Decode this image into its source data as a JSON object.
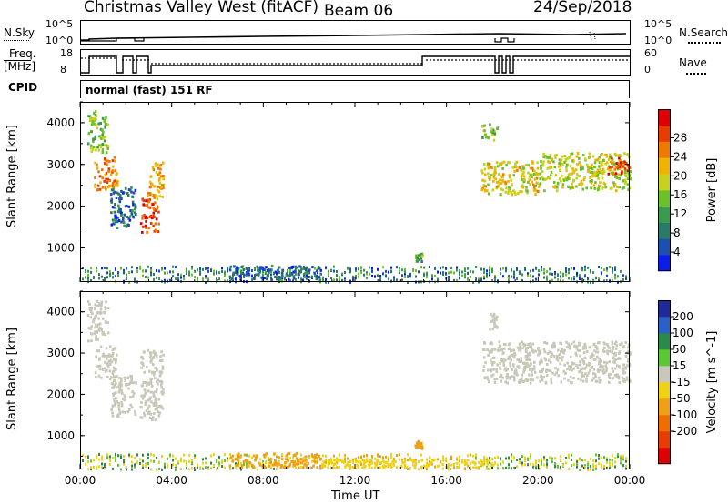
{
  "header": {
    "radar_name": "Christmas Valley West (fitACF)",
    "beam": "Beam 06",
    "date": "24/Sep/2018"
  },
  "top_panels": {
    "nsky_label": "N.Sky",
    "nsearch_label": "N.Search",
    "noise_tick_top": "10^5",
    "noise_tick_bottom": "10^0",
    "freq_label_line1": "Freq.",
    "freq_label_line2": "[MHz]",
    "freq_tick_top": "18",
    "freq_tick_bottom": "8",
    "nave_label": "Nave",
    "nave_tick_top": "60",
    "nave_tick_bottom": "0",
    "cpid_label": "CPID",
    "cpid_text": "normal (fast) 151 RF"
  },
  "chart_data": [
    {
      "type": "heatmap",
      "panel": "power",
      "xlabel": "",
      "ylabel": "Slant Range [km]",
      "y_ticks": [
        "1000",
        "2000",
        "3000",
        "4000"
      ],
      "ylim": [
        180,
        4500
      ],
      "xlim_hours": [
        0,
        24
      ],
      "colorbar_label": "Power [dB]",
      "colorbar_ticks": [
        "4",
        "8",
        "12",
        "16",
        "20",
        "24",
        "28"
      ],
      "colorbar_colors": [
        "#0a1cf0",
        "#1c4fb0",
        "#2a7a6a",
        "#3a9a4e",
        "#6cc02a",
        "#c8d21e",
        "#f0b400",
        "#f07a00",
        "#e83c00",
        "#e00000"
      ],
      "regions": [
        {
          "x": [
            0.3,
            1.2
          ],
          "y": [
            3300,
            4300
          ],
          "value": 14
        },
        {
          "x": [
            0.6,
            1.6
          ],
          "y": [
            2400,
            3200
          ],
          "value": 22
        },
        {
          "x": [
            1.3,
            2.4
          ],
          "y": [
            1500,
            2500
          ],
          "value": 6
        },
        {
          "x": [
            2.6,
            3.4
          ],
          "y": [
            1400,
            2200
          ],
          "value": 26
        },
        {
          "x": [
            2.9,
            3.6
          ],
          "y": [
            2200,
            3100
          ],
          "value": 20
        },
        {
          "x": [
            6.5,
            10.5
          ],
          "y": [
            250,
            600
          ],
          "value": 6
        },
        {
          "x": [
            14.6,
            14.9
          ],
          "y": [
            700,
            900
          ],
          "value": 12
        },
        {
          "x": [
            17.5,
            18.2
          ],
          "y": [
            3600,
            4000
          ],
          "value": 14
        },
        {
          "x": [
            17.5,
            20.0
          ],
          "y": [
            2300,
            3100
          ],
          "value": 18
        },
        {
          "x": [
            20.0,
            24.0
          ],
          "y": [
            2400,
            3300
          ],
          "value": 16
        },
        {
          "x": [
            23.0,
            24.0
          ],
          "y": [
            2800,
            3200
          ],
          "value": 26
        }
      ]
    },
    {
      "type": "heatmap",
      "panel": "velocity",
      "xlabel": "Time UT",
      "ylabel": "Slant Range [km]",
      "x_ticks": [
        "00:00",
        "04:00",
        "08:00",
        "12:00",
        "16:00",
        "20:00",
        "00:00"
      ],
      "y_ticks": [
        "1000",
        "2000",
        "3000",
        "4000"
      ],
      "ylim": [
        180,
        4500
      ],
      "xlim_hours": [
        0,
        24
      ],
      "colorbar_label": "Velocity [m s^-1]",
      "colorbar_ticks": [
        "200",
        "100",
        "50",
        "15",
        "-15",
        "-50",
        "-100",
        "-200"
      ],
      "colorbar_colors": [
        "#1e2a9a",
        "#2a60c8",
        "#2a8a48",
        "#5ac832",
        "#c8c8b8",
        "#f0d214",
        "#f0a014",
        "#f06e00",
        "#e83c00",
        "#e00000"
      ],
      "regions": [
        {
          "x": [
            0.3,
            1.2
          ],
          "y": [
            3300,
            4300
          ],
          "value": 0
        },
        {
          "x": [
            0.6,
            1.6
          ],
          "y": [
            2400,
            3200
          ],
          "value": 0
        },
        {
          "x": [
            1.3,
            2.4
          ],
          "y": [
            1500,
            2500
          ],
          "value": 0
        },
        {
          "x": [
            2.6,
            3.6
          ],
          "y": [
            1400,
            3100
          ],
          "value": 0
        },
        {
          "x": [
            6.5,
            10.5
          ],
          "y": [
            250,
            600
          ],
          "value": -60
        },
        {
          "x": [
            10.5,
            18.0
          ],
          "y": [
            220,
            450
          ],
          "value": -40
        },
        {
          "x": [
            14.6,
            14.9
          ],
          "y": [
            700,
            900
          ],
          "value": -80
        },
        {
          "x": [
            17.5,
            24.0
          ],
          "y": [
            2300,
            3300
          ],
          "value": 0
        },
        {
          "x": [
            17.8,
            18.2
          ],
          "y": [
            3600,
            4000
          ],
          "value": 0
        }
      ]
    }
  ]
}
